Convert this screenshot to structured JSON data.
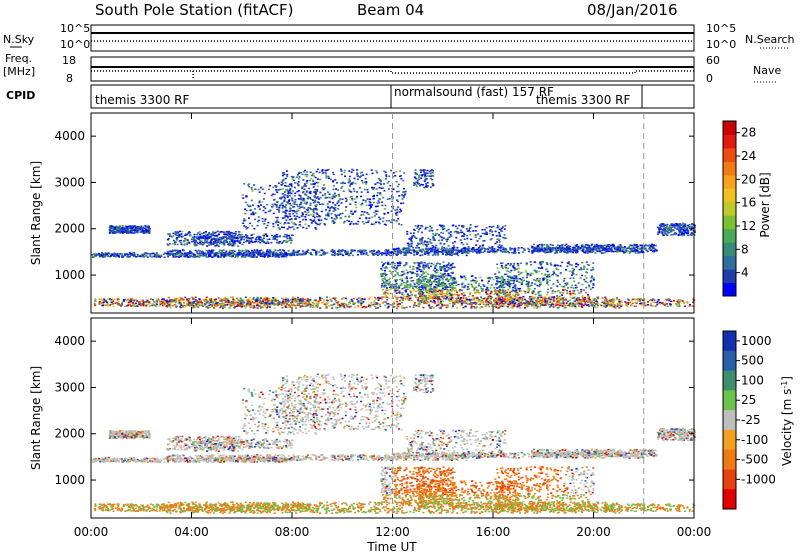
{
  "header": {
    "title": "South Pole Station (fitACF)",
    "beam": "Beam 04",
    "date": "08/Jan/2016"
  },
  "panels": {
    "nsky": {
      "left_label": "N.Sky",
      "right_label": "N.Search",
      "ticks_left": [
        "10^5",
        "10^0"
      ],
      "ticks_right": [
        "10^5",
        "10^0"
      ]
    },
    "freq": {
      "left_label_1": "Freq.",
      "left_label_2": "[MHz]",
      "right_label": "Nave",
      "ticks_left": [
        "18",
        "8"
      ],
      "ticks_right": [
        "60",
        "0"
      ]
    },
    "cpid": {
      "label": "CPID",
      "modes": [
        {
          "text": "themis 3300 RF",
          "start_h": 0.0
        },
        {
          "text": "normalsound (fast) 157 RF",
          "start_h": 12.0
        },
        {
          "text": "themis 3300 RF",
          "start_h": 22.0
        }
      ]
    }
  },
  "chart_data": [
    {
      "type": "heatmap",
      "title": "",
      "xlabel": "",
      "ylabel": "Slant Range [km]",
      "xlim": [
        0,
        24
      ],
      "ylim": [
        180,
        4500
      ],
      "yticks": [
        1000,
        2000,
        3000,
        4000
      ],
      "colorbar": {
        "label": "Power [dB]",
        "ticks": [
          4,
          8,
          12,
          16,
          20,
          24,
          28
        ],
        "range": [
          0,
          30
        ],
        "colors": [
          "#0000ff",
          "#1f3ea8",
          "#2f6d9c",
          "#3a8a78",
          "#4aaa56",
          "#7ac033",
          "#bccb2a",
          "#f0c020",
          "#f7a21a",
          "#f27a14",
          "#ee4c10",
          "#e31a0e",
          "#c80000"
        ]
      }
    },
    {
      "type": "heatmap",
      "title": "",
      "xlabel": "Time UT",
      "ylabel": "Slant Range [km]",
      "xlim": [
        0,
        24
      ],
      "ylim": [
        180,
        4500
      ],
      "yticks": [
        1000,
        2000,
        3000,
        4000
      ],
      "xticklabels": [
        "00:00",
        "04:00",
        "08:00",
        "12:00",
        "16:00",
        "20:00",
        "00:00"
      ],
      "colorbar": {
        "label": "Velocity [m s",
        "label_sup": "-1",
        "label_close": "]",
        "ticks": [
          "1000",
          "500",
          "100",
          "25",
          "-25",
          "-100",
          "-500",
          "-1000"
        ],
        "colors": [
          "#1030b0",
          "#2a5fa8",
          "#3f8f6e",
          "#6cc24a",
          "#bebebe",
          "#f3a020",
          "#f07a10",
          "#e8400c",
          "#e00000"
        ]
      }
    }
  ],
  "xticks": {
    "labels": [
      "00:00",
      "04:00",
      "08:00",
      "12:00",
      "16:00",
      "20:00",
      "00:00"
    ],
    "hours": [
      0,
      4,
      8,
      12,
      16,
      20,
      24
    ]
  }
}
